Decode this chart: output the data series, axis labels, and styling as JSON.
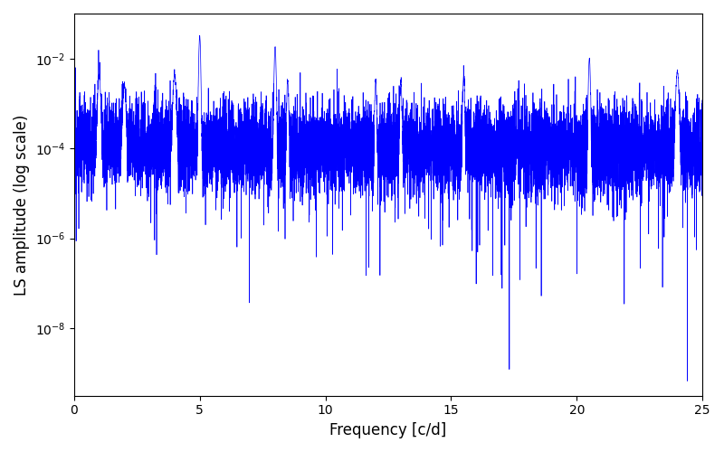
{
  "title": "",
  "xlabel": "Frequency [c/d]",
  "ylabel": "LS amplitude (log scale)",
  "xlim": [
    0,
    25
  ],
  "ylim_log": [
    -9.5,
    -1
  ],
  "line_color": "blue",
  "line_width": 0.5,
  "figsize": [
    8.0,
    5.0
  ],
  "dpi": 100,
  "seed": 12345,
  "n_points": 10000,
  "freq_max": 25.0,
  "base_log": -4.0,
  "noise_std": 0.5,
  "deep_dip_prob": 0.0003,
  "deep_dip_min": 4.0,
  "deep_dip_max": 5.5,
  "peak_frequencies": [
    1.0,
    2.0,
    4.0,
    5.0,
    8.0,
    8.5,
    12.0,
    13.0,
    15.5,
    20.5,
    24.0
  ],
  "peak_amplitudes": [
    0.003,
    0.002,
    0.004,
    0.03,
    0.018,
    0.003,
    0.003,
    0.003,
    0.004,
    0.01,
    0.005
  ],
  "peak_widths": [
    0.04,
    0.04,
    0.04,
    0.025,
    0.025,
    0.025,
    0.025,
    0.025,
    0.025,
    0.025,
    0.04
  ],
  "yticks": [
    1e-08,
    1e-06,
    0.0001,
    0.01
  ],
  "xticks": [
    0,
    5,
    10,
    15,
    20,
    25
  ],
  "background_color": "#ffffff"
}
